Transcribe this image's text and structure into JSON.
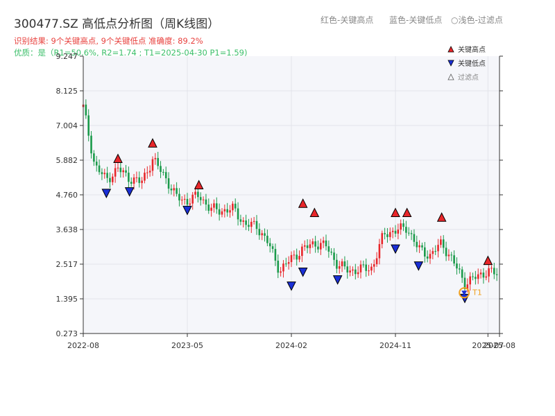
{
  "header": {
    "title": "300477.SZ 高低点分析图（周K线图）",
    "legend_red": "红色-关键高点",
    "legend_blue": "蓝色-关键低点",
    "legend_hollow": "浅色-过滤点",
    "result_line": "识别结果: 9个关键高点, 9个关键低点  准确度: 89.2%",
    "quality_line": "优质：是（R1=50.6%, R2=1.74 ; T1=2025-04-30 P1=1.59)"
  },
  "colors": {
    "up": "#e8262a",
    "down": "#1a9a4a",
    "high_marker": "#e8262a",
    "low_marker": "#1a2fd6",
    "t1_marker": "#f0a020",
    "quality_text": "#3cbf6a",
    "result_text": "#e8413e"
  },
  "chart_data": {
    "type": "candlestick",
    "title": "300477.SZ 高低点分析图（周K线图）",
    "y_ticks": [
      "0.273",
      "1.395",
      "2.517",
      "3.638",
      "4.760",
      "5.882",
      "7.004",
      "8.125",
      "9.247"
    ],
    "ylim": [
      0.273,
      9.247
    ],
    "x_ticks": [
      "2022-08",
      "2023-05",
      "2024-02",
      "2024-11",
      "2025-07",
      "2025-08"
    ],
    "xlim": [
      "2022-08",
      "2025-08"
    ],
    "grid": true,
    "legend": {
      "placement": "top-right",
      "entries": [
        "关键高点",
        "关键低点",
        "过滤点"
      ]
    },
    "close_path": [
      [
        "2022-08",
        7.6
      ],
      [
        "2022-09",
        5.7
      ],
      [
        "2022-10",
        5.25
      ],
      [
        "2022-11",
        5.6
      ],
      [
        "2022-12",
        5.3
      ],
      [
        "2023-01",
        5.15
      ],
      [
        "2023-02",
        5.9
      ],
      [
        "2023-03",
        5.4
      ],
      [
        "2023-04",
        4.7
      ],
      [
        "2023-05",
        4.55
      ],
      [
        "2023-06",
        4.75
      ],
      [
        "2023-07",
        4.3
      ],
      [
        "2023-08",
        4.25
      ],
      [
        "2023-09",
        4.3
      ],
      [
        "2023-10",
        3.8
      ],
      [
        "2023-11",
        3.75
      ],
      [
        "2023-12",
        3.2
      ],
      [
        "2024-01",
        2.3
      ],
      [
        "2024-02",
        2.7
      ],
      [
        "2024-03",
        3.0
      ],
      [
        "2024-04",
        3.2
      ],
      [
        "2024-05",
        3.1
      ],
      [
        "2024-06",
        2.5
      ],
      [
        "2024-07",
        2.3
      ],
      [
        "2024-08",
        2.35
      ],
      [
        "2024-09",
        2.4
      ],
      [
        "2024-10",
        3.5
      ],
      [
        "2024-11",
        3.6
      ],
      [
        "2024-12",
        3.7
      ],
      [
        "2025-01",
        3.0
      ],
      [
        "2025-02",
        2.8
      ],
      [
        "2025-03",
        3.2
      ],
      [
        "2025-04",
        2.6
      ],
      [
        "2025-05",
        1.9
      ],
      [
        "2025-06",
        2.1
      ],
      [
        "2025-07",
        2.3
      ],
      [
        "2025-08",
        2.15
      ]
    ],
    "key_highs": [
      {
        "date": "2022-11",
        "price": 5.6
      },
      {
        "date": "2023-02",
        "price": 6.1
      },
      {
        "date": "2023-06",
        "price": 4.75
      },
      {
        "date": "2024-03",
        "price": 4.15
      },
      {
        "date": "2024-04",
        "price": 3.85
      },
      {
        "date": "2024-11",
        "price": 3.85
      },
      {
        "date": "2024-12",
        "price": 3.85
      },
      {
        "date": "2025-03",
        "price": 3.7
      },
      {
        "date": "2025-07",
        "price": 2.3
      }
    ],
    "key_lows": [
      {
        "date": "2022-10",
        "price": 5.1
      },
      {
        "date": "2022-12",
        "price": 5.15
      },
      {
        "date": "2023-05",
        "price": 4.55
      },
      {
        "date": "2024-02",
        "price": 2.1
      },
      {
        "date": "2024-03",
        "price": 2.55
      },
      {
        "date": "2024-06",
        "price": 2.3
      },
      {
        "date": "2024-11",
        "price": 3.3
      },
      {
        "date": "2025-01",
        "price": 2.75
      },
      {
        "date": "2025-05",
        "price": 1.7
      }
    ],
    "t1": {
      "label": "T1",
      "date": "2025-04-30",
      "price": 1.59
    }
  }
}
